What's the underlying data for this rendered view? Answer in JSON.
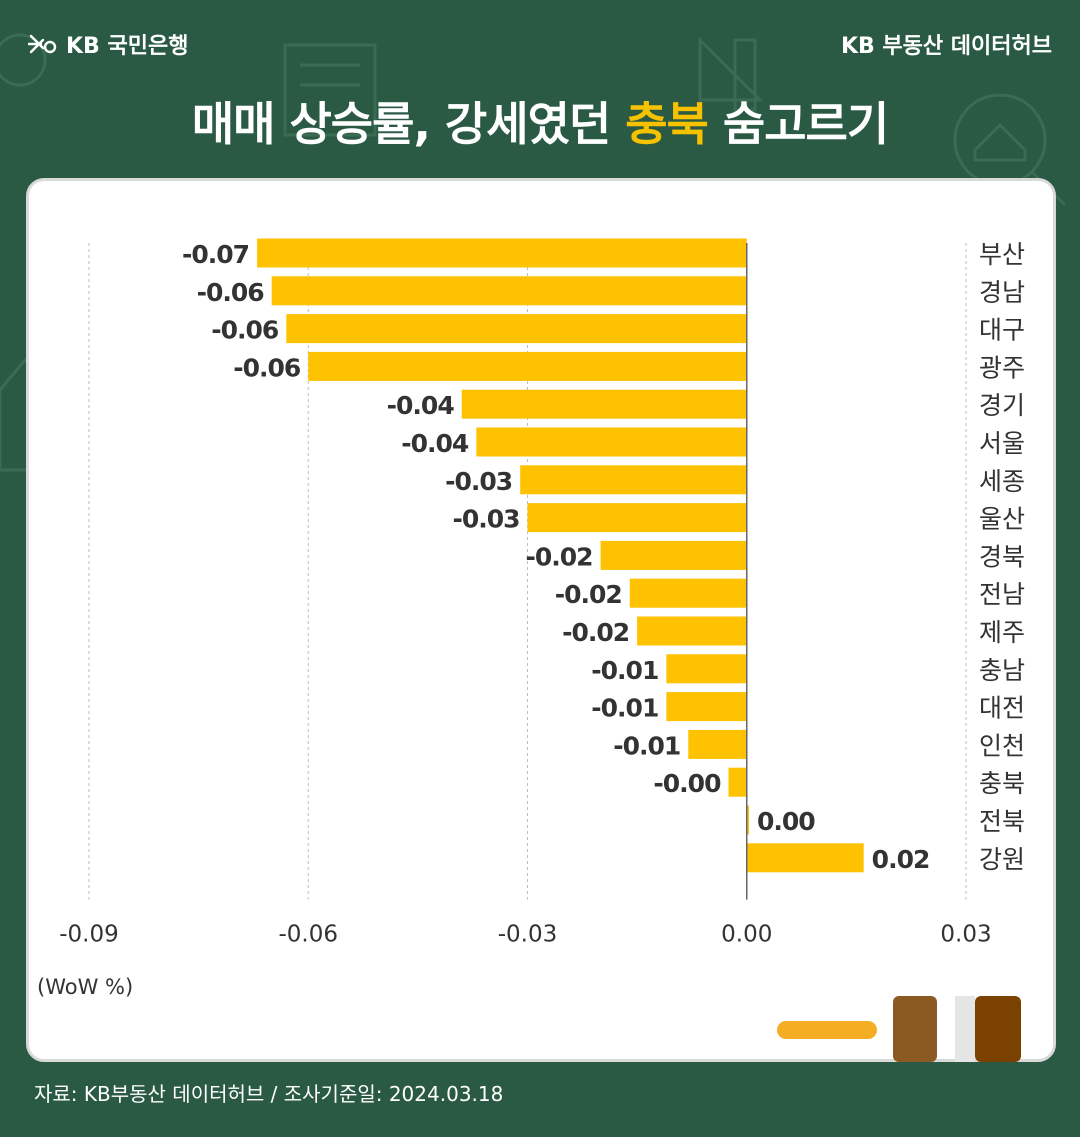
{
  "header": {
    "logo_text": "KB 국민은행",
    "right_text": "KB 부동산  데이터허브"
  },
  "title": {
    "prefix": "매매 상승률, 강세였던 ",
    "highlight": "충북",
    "suffix": " 숨고르기"
  },
  "colors": {
    "background": "#2a5a43",
    "bar": "#ffc200",
    "highlight": "#f6c200"
  },
  "chart_data": {
    "type": "bar",
    "orientation": "horizontal",
    "categories": [
      "부산",
      "경남",
      "대구",
      "광주",
      "경기",
      "서울",
      "세종",
      "울산",
      "경북",
      "전남",
      "제주",
      "충남",
      "대전",
      "인천",
      "충북",
      "전북",
      "강원"
    ],
    "values": [
      -0.067,
      -0.065,
      -0.063,
      -0.06,
      -0.039,
      -0.037,
      -0.031,
      -0.03,
      -0.02,
      -0.016,
      -0.015,
      -0.011,
      -0.011,
      -0.008,
      -0.0025,
      0.0003,
      0.016
    ],
    "labels": [
      "-0.07",
      "-0.06",
      "-0.06",
      "-0.06",
      "-0.04",
      "-0.04",
      "-0.03",
      "-0.03",
      "-0.02",
      "-0.02",
      "-0.02",
      "-0.01",
      "-0.01",
      "-0.01",
      "-0.00",
      "0.00",
      "0.02"
    ],
    "xlim": [
      -0.09,
      0.03
    ],
    "xticks": [
      "-0.09",
      "-0.06",
      "-0.03",
      "0.00",
      "0.03"
    ],
    "xtick_values": [
      -0.09,
      -0.06,
      -0.03,
      0.0,
      0.03
    ],
    "unit_label": "(WoW %)",
    "grid": true
  },
  "footer": {
    "source": "자료: KB부동산 데이터허브 / 조사기준일: 2024.03.18"
  }
}
